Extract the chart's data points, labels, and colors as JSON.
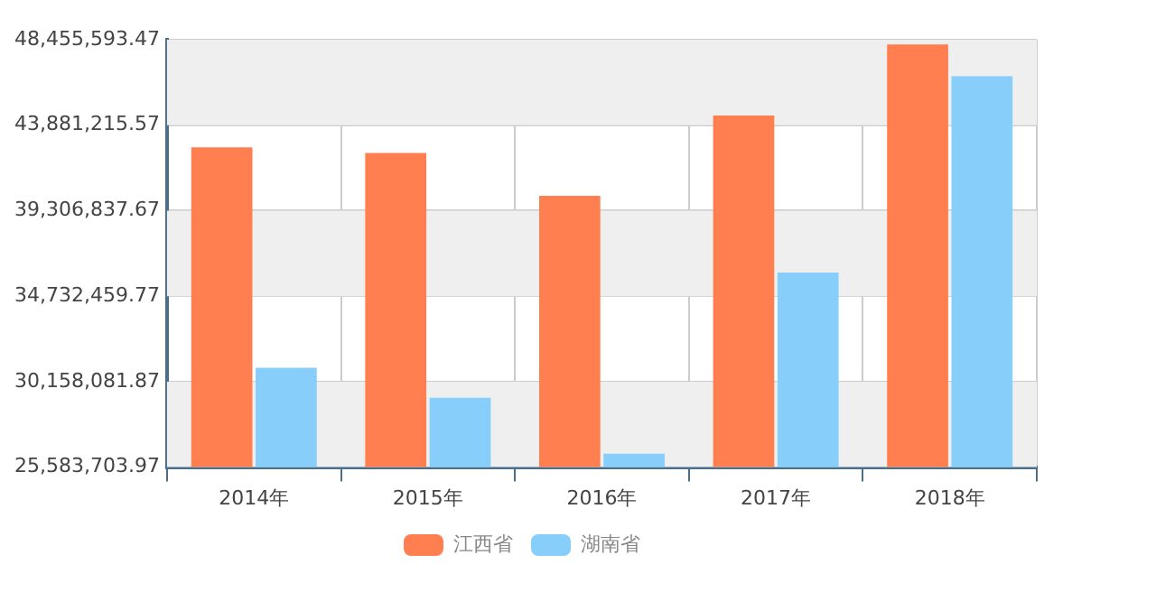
{
  "chart_data": {
    "type": "bar",
    "categories": [
      "2014年",
      "2015年",
      "2016年",
      "2017年",
      "2018年"
    ],
    "series": [
      {
        "name": "江西省",
        "color": "#ff7f50",
        "values": [
          42700000,
          42400000,
          40100000,
          44400000,
          48200000
        ]
      },
      {
        "name": "湖南省",
        "color": "#87cefa",
        "values": [
          30900000,
          29300000,
          26300000,
          36000000,
          46500000
        ]
      }
    ],
    "ylim": [
      25583703.97,
      48455593.47
    ],
    "yticks": [
      {
        "value": 25583703.97,
        "label": "25,583,703.97"
      },
      {
        "value": 30158081.87,
        "label": "30,158,081.87"
      },
      {
        "value": 34732459.77,
        "label": "34,732,459.77"
      },
      {
        "value": 39306837.67,
        "label": "39,306,837.67"
      },
      {
        "value": 43881215.57,
        "label": "43,881,215.57"
      },
      {
        "value": 48455593.47,
        "label": "48,455,593.47"
      }
    ],
    "grid": true,
    "legend": "bottom"
  }
}
